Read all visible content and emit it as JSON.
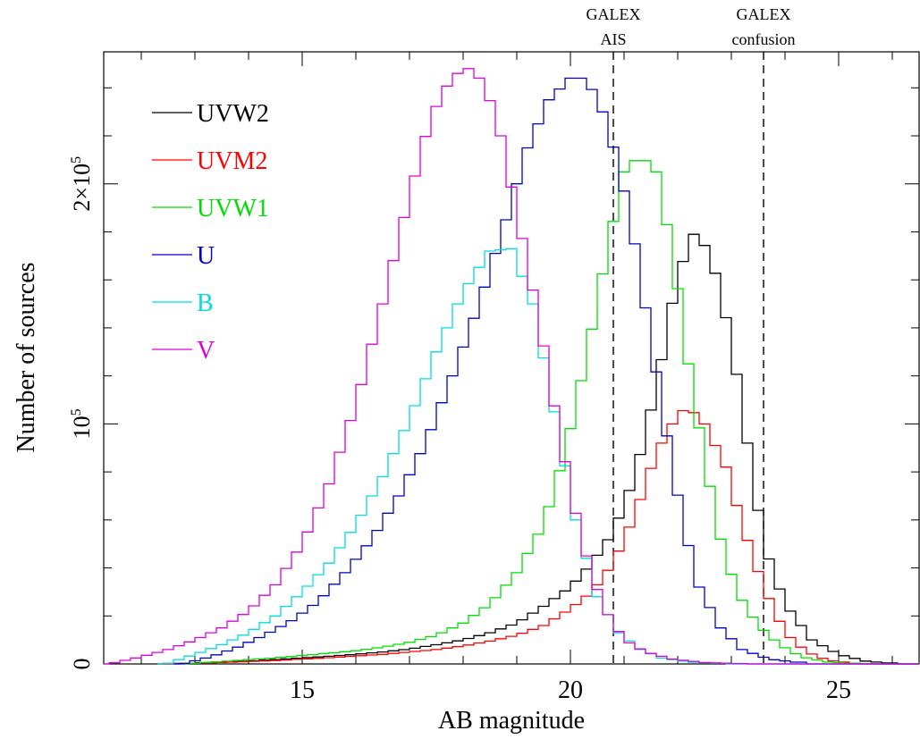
{
  "chart_data": {
    "type": "line",
    "title": "",
    "xlabel": "AB magnitude",
    "ylabel": "Number of sources",
    "xlim": [
      11.3,
      26.5
    ],
    "ylim": [
      0,
      2.55
    ],
    "y_unit_note": "",
    "x_ticks": [
      {
        "value": 15,
        "label": "15"
      },
      {
        "value": 20,
        "label": "20"
      },
      {
        "value": 25,
        "label": "25"
      }
    ],
    "y_ticks": [
      {
        "value": 0,
        "base": "0",
        "sup": ""
      },
      {
        "value": 1,
        "base": "10",
        "sup": "5"
      },
      {
        "value": 2,
        "base": "2×10",
        "sup": "5"
      }
    ],
    "legend_position": "top-left",
    "vlines": [
      {
        "x": 20.8,
        "label_line1": "GALEX",
        "label_line2": "AIS"
      },
      {
        "x": 23.6,
        "label_line1": "GALEX",
        "label_line2": "confusion"
      }
    ],
    "series": [
      {
        "name": "UVW2",
        "color": "#000000",
        "points": [
          [
            12.5,
            0.001
          ],
          [
            13.0,
            0.004
          ],
          [
            13.5,
            0.008
          ],
          [
            14.0,
            0.012
          ],
          [
            14.5,
            0.018
          ],
          [
            15.0,
            0.025
          ],
          [
            15.5,
            0.032
          ],
          [
            16.0,
            0.04
          ],
          [
            16.5,
            0.05
          ],
          [
            17.0,
            0.062
          ],
          [
            17.5,
            0.08
          ],
          [
            18.0,
            0.1
          ],
          [
            18.5,
            0.13
          ],
          [
            19.0,
            0.17
          ],
          [
            19.5,
            0.24
          ],
          [
            20.0,
            0.32
          ],
          [
            20.4,
            0.42
          ],
          [
            20.8,
            0.55
          ],
          [
            21.2,
            0.78
          ],
          [
            21.6,
            1.15
          ],
          [
            22.0,
            1.62
          ],
          [
            22.3,
            1.79
          ],
          [
            22.6,
            1.72
          ],
          [
            23.0,
            1.35
          ],
          [
            23.3,
            0.92
          ],
          [
            23.6,
            0.5
          ],
          [
            24.0,
            0.25
          ],
          [
            24.5,
            0.1
          ],
          [
            25.0,
            0.04
          ],
          [
            25.5,
            0.012
          ],
          [
            26.0,
            0.002
          ]
        ]
      },
      {
        "name": "UVM2",
        "color": "#ff0000",
        "points": [
          [
            12.5,
            0.001
          ],
          [
            13.0,
            0.003
          ],
          [
            13.5,
            0.006
          ],
          [
            14.0,
            0.01
          ],
          [
            14.5,
            0.014
          ],
          [
            15.0,
            0.02
          ],
          [
            15.5,
            0.026
          ],
          [
            16.0,
            0.033
          ],
          [
            16.5,
            0.04
          ],
          [
            17.0,
            0.05
          ],
          [
            17.5,
            0.06
          ],
          [
            18.0,
            0.075
          ],
          [
            18.5,
            0.095
          ],
          [
            19.0,
            0.12
          ],
          [
            19.5,
            0.16
          ],
          [
            20.0,
            0.23
          ],
          [
            20.4,
            0.3
          ],
          [
            20.8,
            0.42
          ],
          [
            21.2,
            0.62
          ],
          [
            21.6,
            0.88
          ],
          [
            22.0,
            1.04
          ],
          [
            22.2,
            1.07
          ],
          [
            22.5,
            1.0
          ],
          [
            22.9,
            0.82
          ],
          [
            23.2,
            0.58
          ],
          [
            23.6,
            0.32
          ],
          [
            24.0,
            0.13
          ],
          [
            24.4,
            0.05
          ],
          [
            24.8,
            0.015
          ],
          [
            25.3,
            0.003
          ]
        ]
      },
      {
        "name": "UVW1",
        "color": "#00dd00",
        "points": [
          [
            13.0,
            0.003
          ],
          [
            13.5,
            0.01
          ],
          [
            14.0,
            0.018
          ],
          [
            14.5,
            0.025
          ],
          [
            15.0,
            0.035
          ],
          [
            15.5,
            0.045
          ],
          [
            16.0,
            0.055
          ],
          [
            16.5,
            0.07
          ],
          [
            17.0,
            0.09
          ],
          [
            17.5,
            0.12
          ],
          [
            18.0,
            0.17
          ],
          [
            18.5,
            0.25
          ],
          [
            19.0,
            0.38
          ],
          [
            19.5,
            0.58
          ],
          [
            19.9,
            0.88
          ],
          [
            20.3,
            1.28
          ],
          [
            20.7,
            1.74
          ],
          [
            21.0,
            2.05
          ],
          [
            21.3,
            2.12
          ],
          [
            21.6,
            2.05
          ],
          [
            21.9,
            1.72
          ],
          [
            22.2,
            1.25
          ],
          [
            22.5,
            0.85
          ],
          [
            22.8,
            0.52
          ],
          [
            23.1,
            0.3
          ],
          [
            23.5,
            0.16
          ],
          [
            23.9,
            0.08
          ],
          [
            24.3,
            0.03
          ],
          [
            24.8,
            0.008
          ],
          [
            25.3,
            0.002
          ]
        ]
      },
      {
        "name": "U",
        "color": "#0000cc",
        "points": [
          [
            12.8,
            0.002
          ],
          [
            13.3,
            0.03
          ],
          [
            13.8,
            0.07
          ],
          [
            14.3,
            0.12
          ],
          [
            14.8,
            0.18
          ],
          [
            15.3,
            0.26
          ],
          [
            15.8,
            0.38
          ],
          [
            16.3,
            0.52
          ],
          [
            16.8,
            0.7
          ],
          [
            17.3,
            0.92
          ],
          [
            17.8,
            1.2
          ],
          [
            18.3,
            1.5
          ],
          [
            18.8,
            1.85
          ],
          [
            19.2,
            2.15
          ],
          [
            19.6,
            2.35
          ],
          [
            20.0,
            2.44
          ],
          [
            20.3,
            2.44
          ],
          [
            20.6,
            2.3
          ],
          [
            20.9,
            2.08
          ],
          [
            21.2,
            1.75
          ],
          [
            21.5,
            1.35
          ],
          [
            21.8,
            0.95
          ],
          [
            22.1,
            0.58
          ],
          [
            22.4,
            0.32
          ],
          [
            22.8,
            0.15
          ],
          [
            23.2,
            0.06
          ],
          [
            23.7,
            0.02
          ],
          [
            24.3,
            0.005
          ]
        ]
      },
      {
        "name": "B",
        "color": "#00dddd",
        "points": [
          [
            12.5,
            0.003
          ],
          [
            13.0,
            0.04
          ],
          [
            13.5,
            0.08
          ],
          [
            14.0,
            0.13
          ],
          [
            14.5,
            0.2
          ],
          [
            15.0,
            0.3
          ],
          [
            15.5,
            0.42
          ],
          [
            16.0,
            0.58
          ],
          [
            16.5,
            0.78
          ],
          [
            17.0,
            1.02
          ],
          [
            17.5,
            1.3
          ],
          [
            18.0,
            1.55
          ],
          [
            18.5,
            1.72
          ],
          [
            18.9,
            1.73
          ],
          [
            19.3,
            1.5
          ],
          [
            19.7,
            1.05
          ],
          [
            20.1,
            0.6
          ],
          [
            20.5,
            0.28
          ],
          [
            20.9,
            0.13
          ],
          [
            21.3,
            0.06
          ],
          [
            21.7,
            0.025
          ],
          [
            22.2,
            0.008
          ],
          [
            22.8,
            0.002
          ]
        ]
      },
      {
        "name": "V",
        "color": "#dd00dd",
        "points": [
          [
            11.5,
            0.005
          ],
          [
            12.0,
            0.03
          ],
          [
            12.5,
            0.06
          ],
          [
            13.0,
            0.1
          ],
          [
            13.5,
            0.15
          ],
          [
            14.0,
            0.22
          ],
          [
            14.5,
            0.33
          ],
          [
            15.0,
            0.5
          ],
          [
            15.5,
            0.75
          ],
          [
            16.0,
            1.08
          ],
          [
            16.5,
            1.5
          ],
          [
            17.0,
            1.95
          ],
          [
            17.4,
            2.28
          ],
          [
            17.8,
            2.45
          ],
          [
            18.1,
            2.48
          ],
          [
            18.4,
            2.42
          ],
          [
            18.7,
            2.2
          ],
          [
            19.0,
            1.88
          ],
          [
            19.4,
            1.45
          ],
          [
            19.8,
            0.95
          ],
          [
            20.2,
            0.52
          ],
          [
            20.6,
            0.24
          ],
          [
            21.0,
            0.1
          ],
          [
            21.4,
            0.05
          ],
          [
            21.9,
            0.02
          ],
          [
            22.5,
            0.006
          ],
          [
            23.2,
            0.001
          ]
        ]
      }
    ]
  }
}
